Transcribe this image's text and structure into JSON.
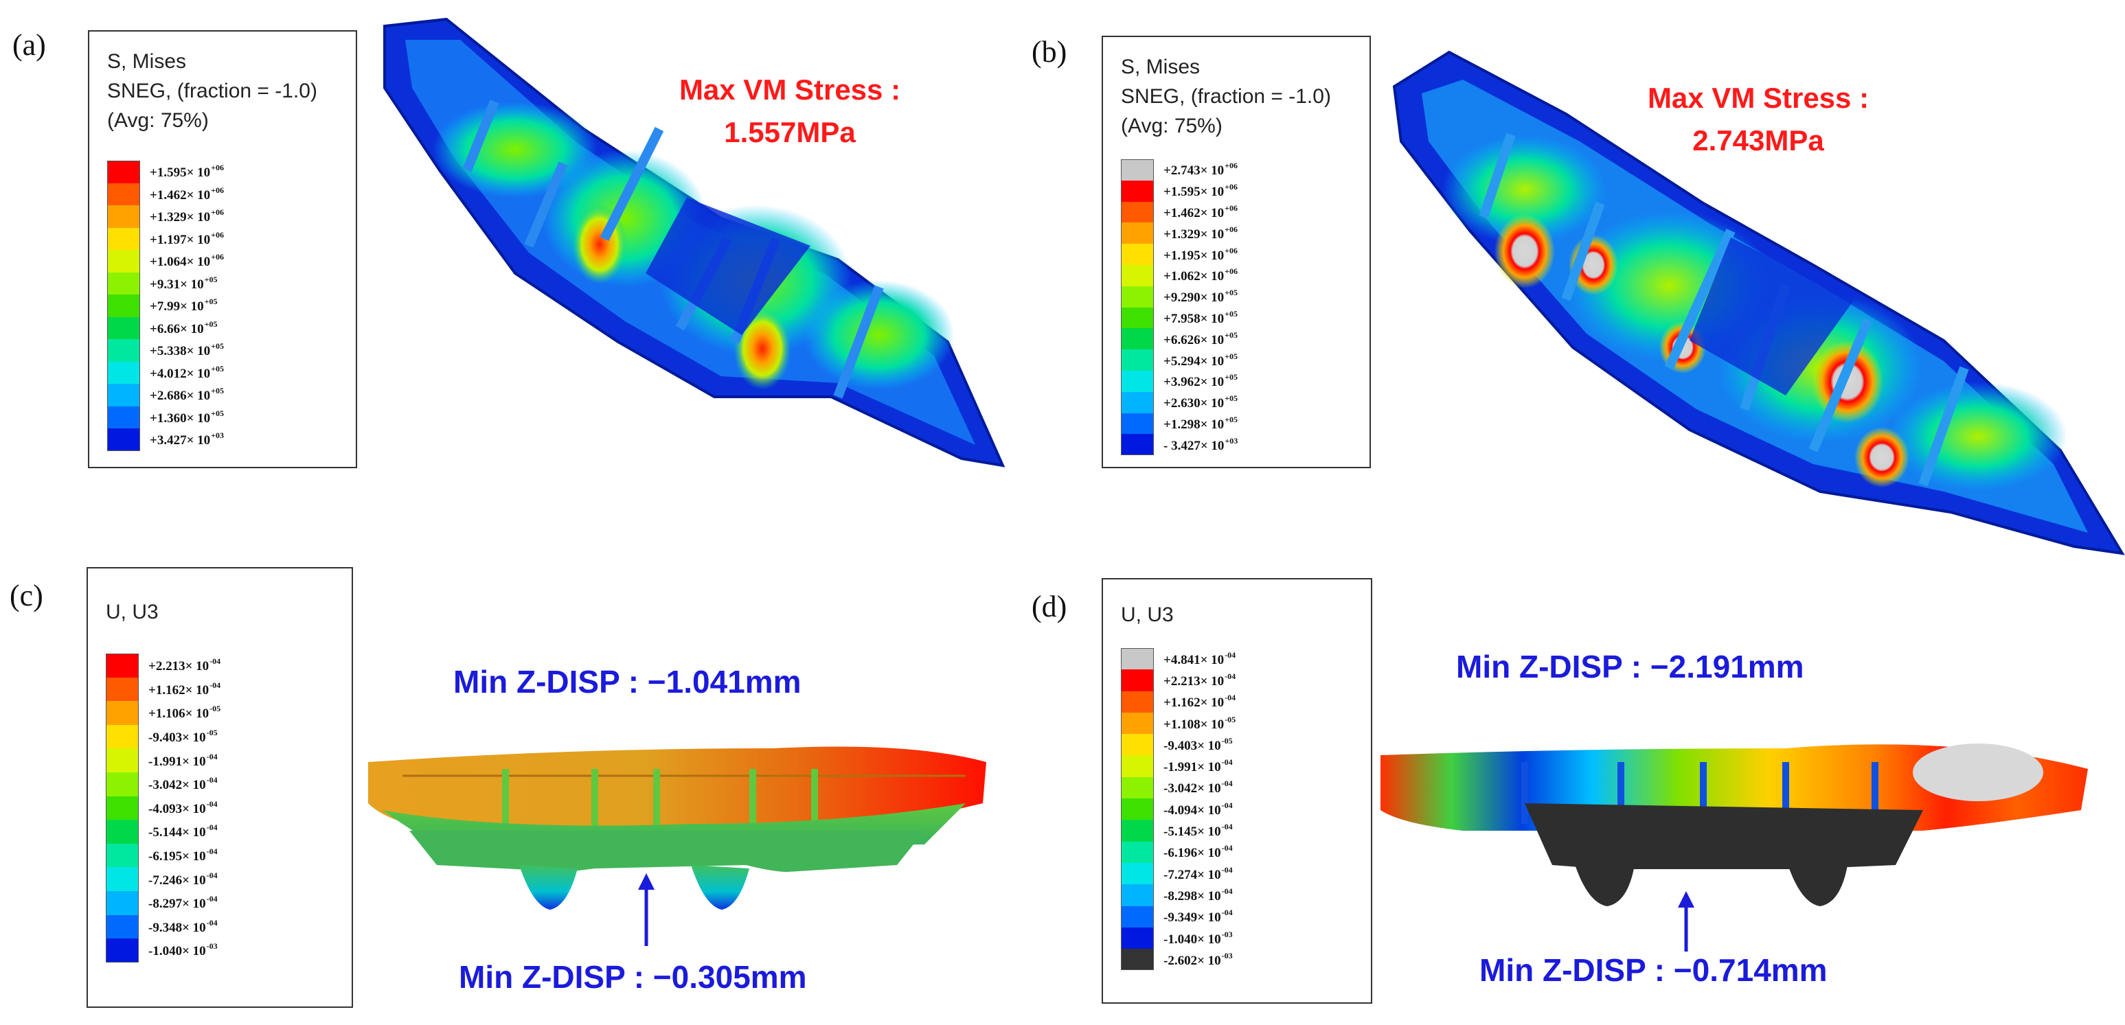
{
  "panels": {
    "a": {
      "label": "(a)",
      "legend_title": [
        "S, Mises",
        "SNEG, (fraction = -1.0)",
        "(Avg: 75%)"
      ],
      "scale": [
        {
          "m": "+1.595",
          "e": "+06",
          "color": "#ff0000"
        },
        {
          "m": "+1.462",
          "e": "+06",
          "color": "#ff5a00"
        },
        {
          "m": "+1.329",
          "e": "+06",
          "color": "#ffa200"
        },
        {
          "m": "+1.197",
          "e": "+06",
          "color": "#ffe000"
        },
        {
          "m": "+1.064",
          "e": "+06",
          "color": "#d8f500"
        },
        {
          "m": "+9.31",
          "e": "+05",
          "color": "#8cf200"
        },
        {
          "m": "+7.99",
          "e": "+05",
          "color": "#3ee000"
        },
        {
          "m": "+6.66",
          "e": "+05",
          "color": "#00d84a"
        },
        {
          "m": "+5.338",
          "e": "+05",
          "color": "#00e8a0"
        },
        {
          "m": "+4.012",
          "e": "+05",
          "color": "#00e6e6"
        },
        {
          "m": "+2.686",
          "e": "+05",
          "color": "#00b4ff"
        },
        {
          "m": "+1.360",
          "e": "+05",
          "color": "#006aff"
        },
        {
          "m": "+3.427",
          "e": "+03",
          "color": "#0018e0"
        }
      ],
      "annotation_line1": "Max VM Stress :",
      "annotation_line2": "1.557MPa"
    },
    "b": {
      "label": "(b)",
      "legend_title": [
        "S, Mises",
        "SNEG, (fraction = -1.0)",
        "(Avg: 75%)"
      ],
      "scale": [
        {
          "m": "+2.743",
          "e": "+06",
          "color": "#c8c8c8"
        },
        {
          "m": "+1.595",
          "e": "+06",
          "color": "#ff0000"
        },
        {
          "m": "+1.462",
          "e": "+06",
          "color": "#ff5a00"
        },
        {
          "m": "+1.329",
          "e": "+06",
          "color": "#ffa200"
        },
        {
          "m": "+1.195",
          "e": "+06",
          "color": "#ffe000"
        },
        {
          "m": "+1.062",
          "e": "+06",
          "color": "#d8f500"
        },
        {
          "m": "+9.290",
          "e": "+05",
          "color": "#8cf200"
        },
        {
          "m": "+7.958",
          "e": "+05",
          "color": "#3ee000"
        },
        {
          "m": "+6.626",
          "e": "+05",
          "color": "#00d84a"
        },
        {
          "m": "+5.294",
          "e": "+05",
          "color": "#00e8a0"
        },
        {
          "m": "+3.962",
          "e": "+05",
          "color": "#00e6e6"
        },
        {
          "m": "+2.630",
          "e": "+05",
          "color": "#00b4ff"
        },
        {
          "m": "+1.298",
          "e": "+05",
          "color": "#006aff"
        },
        {
          "m": "- 3.427",
          "e": "+03",
          "color": "#0018e0"
        }
      ],
      "annotation_line1": "Max VM Stress :",
      "annotation_line2": "2.743MPa"
    },
    "c": {
      "label": "(c)",
      "legend_title": [
        "U, U3"
      ],
      "scale": [
        {
          "m": "+2.213",
          "e": "-04",
          "color": "#ff0000"
        },
        {
          "m": "+1.162",
          "e": "-04",
          "color": "#ff5a00"
        },
        {
          "m": "+1.106",
          "e": "-05",
          "color": "#ffa200"
        },
        {
          "m": "-9.403",
          "e": "-05",
          "color": "#ffe000"
        },
        {
          "m": "-1.991",
          "e": "-04",
          "color": "#d8f500"
        },
        {
          "m": "-3.042",
          "e": "-04",
          "color": "#8cf200"
        },
        {
          "m": "-4.093",
          "e": "-04",
          "color": "#3ee000"
        },
        {
          "m": "-5.144",
          "e": "-04",
          "color": "#00d84a"
        },
        {
          "m": "-6.195",
          "e": "-04",
          "color": "#00e8a0"
        },
        {
          "m": "-7.246",
          "e": "-04",
          "color": "#00e6e6"
        },
        {
          "m": "-8.297",
          "e": "-04",
          "color": "#00b4ff"
        },
        {
          "m": "-9.348",
          "e": "-04",
          "color": "#006aff"
        },
        {
          "m": "-1.040",
          "e": "-03",
          "color": "#0018e0"
        }
      ],
      "annotation_top": "Min Z-DISP : −1.041mm",
      "annotation_bottom": "Min Z-DISP : −0.305mm"
    },
    "d": {
      "label": "(d)",
      "legend_title": [
        "U, U3"
      ],
      "scale": [
        {
          "m": "+4.841",
          "e": "-04",
          "color": "#c8c8c8"
        },
        {
          "m": "+2.213",
          "e": "-04",
          "color": "#ff0000"
        },
        {
          "m": "+1.162",
          "e": "-04",
          "color": "#ff5a00"
        },
        {
          "m": "+1.108",
          "e": "-05",
          "color": "#ffa200"
        },
        {
          "m": "-9.403",
          "e": "-05",
          "color": "#ffe000"
        },
        {
          "m": "-1.991",
          "e": "-04",
          "color": "#d8f500"
        },
        {
          "m": "-3.042",
          "e": "-04",
          "color": "#8cf200"
        },
        {
          "m": "-4.094",
          "e": "-04",
          "color": "#3ee000"
        },
        {
          "m": "-5.145",
          "e": "-04",
          "color": "#00d84a"
        },
        {
          "m": "-6.196",
          "e": "-04",
          "color": "#00e8a0"
        },
        {
          "m": "-7.274",
          "e": "-04",
          "color": "#00e6e6"
        },
        {
          "m": "-8.298",
          "e": "-04",
          "color": "#00b4ff"
        },
        {
          "m": "-9.349",
          "e": "-04",
          "color": "#006aff"
        },
        {
          "m": "-1.040",
          "e": "-03",
          "color": "#0018e0"
        },
        {
          "m": "-2.602",
          "e": "-03",
          "color": "#333333"
        }
      ],
      "annotation_top": "Min Z-DISP : −2.191mm",
      "annotation_bottom": "Min Z-DISP : −0.714mm"
    }
  },
  "colors": {
    "max_label": "#ff1a1a",
    "min_label": "#1b1bdb",
    "arrow": "#1b1bdb",
    "hull_base": "#0a2fd8"
  }
}
